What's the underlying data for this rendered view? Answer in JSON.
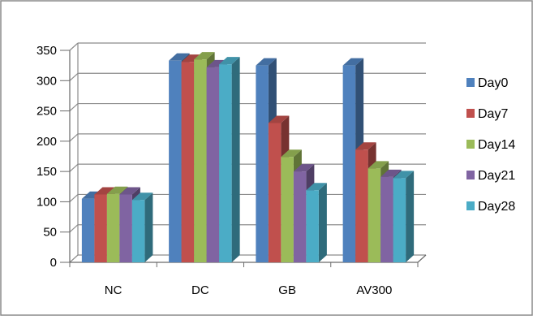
{
  "chart_data": {
    "type": "bar",
    "title": "",
    "xlabel": "",
    "ylabel": "",
    "ylim": [
      0,
      350
    ],
    "y_ticks": [
      "0",
      "50",
      "100",
      "150",
      "200",
      "250",
      "300",
      "350"
    ],
    "categories": [
      "NC",
      "DC",
      "GB",
      "AV300"
    ],
    "series": [
      {
        "name": "Day0",
        "color": "#4f81bd",
        "values": [
          105,
          333,
          325,
          325
        ]
      },
      {
        "name": "Day7",
        "color": "#c0504d",
        "values": [
          112,
          331,
          230,
          186
        ]
      },
      {
        "name": "Day14",
        "color": "#9bbb59",
        "values": [
          113,
          335,
          174,
          155
        ]
      },
      {
        "name": "Day21",
        "color": "#8064a2",
        "values": [
          112,
          322,
          150,
          141
        ]
      },
      {
        "name": "Day28",
        "color": "#4bacc6",
        "values": [
          103,
          327,
          119,
          139
        ]
      }
    ],
    "legend_position": "right",
    "grid": true,
    "style": "3d-clustered-column"
  }
}
